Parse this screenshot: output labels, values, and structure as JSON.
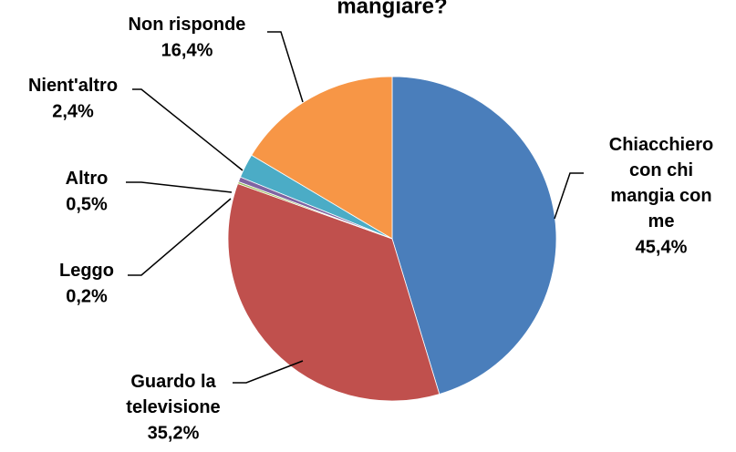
{
  "chart_data": {
    "type": "pie",
    "title": "mangiare?",
    "categories": [
      "Chiacchiero con chi mangia con me",
      "Guardo la televisione",
      "Leggo",
      "Altro",
      "Nient'altro",
      "Non risponde"
    ],
    "values": [
      45.4,
      35.2,
      0.2,
      0.5,
      2.4,
      16.4
    ],
    "value_labels": [
      "45,4%",
      "35,2%",
      "0,2%",
      "0,5%",
      "2,4%",
      "16,4%"
    ],
    "colors": [
      "#4a7ebb",
      "#c0504d",
      "#9bbb59",
      "#8064a2",
      "#4bacc6",
      "#f79646"
    ]
  }
}
